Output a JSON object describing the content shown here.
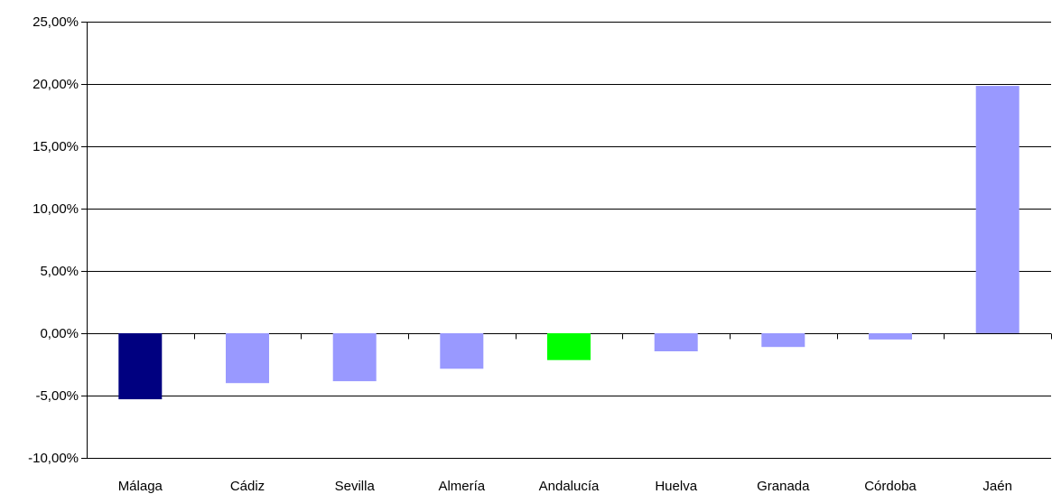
{
  "chart_data": {
    "type": "bar",
    "categories": [
      "Málaga",
      "Cádiz",
      "Sevilla",
      "Almería",
      "Andalucía",
      "Huelva",
      "Granada",
      "Córdoba",
      "Jaén"
    ],
    "values": [
      -5.3,
      -4.0,
      -3.85,
      -2.85,
      -2.15,
      -1.45,
      -1.1,
      -0.5,
      19.85
    ],
    "ylim": [
      -10,
      25
    ],
    "yticks": [
      25,
      20,
      15,
      10,
      5,
      0,
      -5,
      -10
    ],
    "ytick_labels": [
      "25,00%",
      "20,00%",
      "15,00%",
      "10,00%",
      "5,00%",
      "0,00%",
      "-5,00%",
      "-10,00%"
    ],
    "grid": true,
    "title": "",
    "xlabel": "",
    "ylabel": "",
    "colors": [
      "#000080",
      "#9999ff",
      "#9999ff",
      "#9999ff",
      "#00ff00",
      "#9999ff",
      "#9999ff",
      "#9999ff",
      "#9999ff"
    ]
  }
}
